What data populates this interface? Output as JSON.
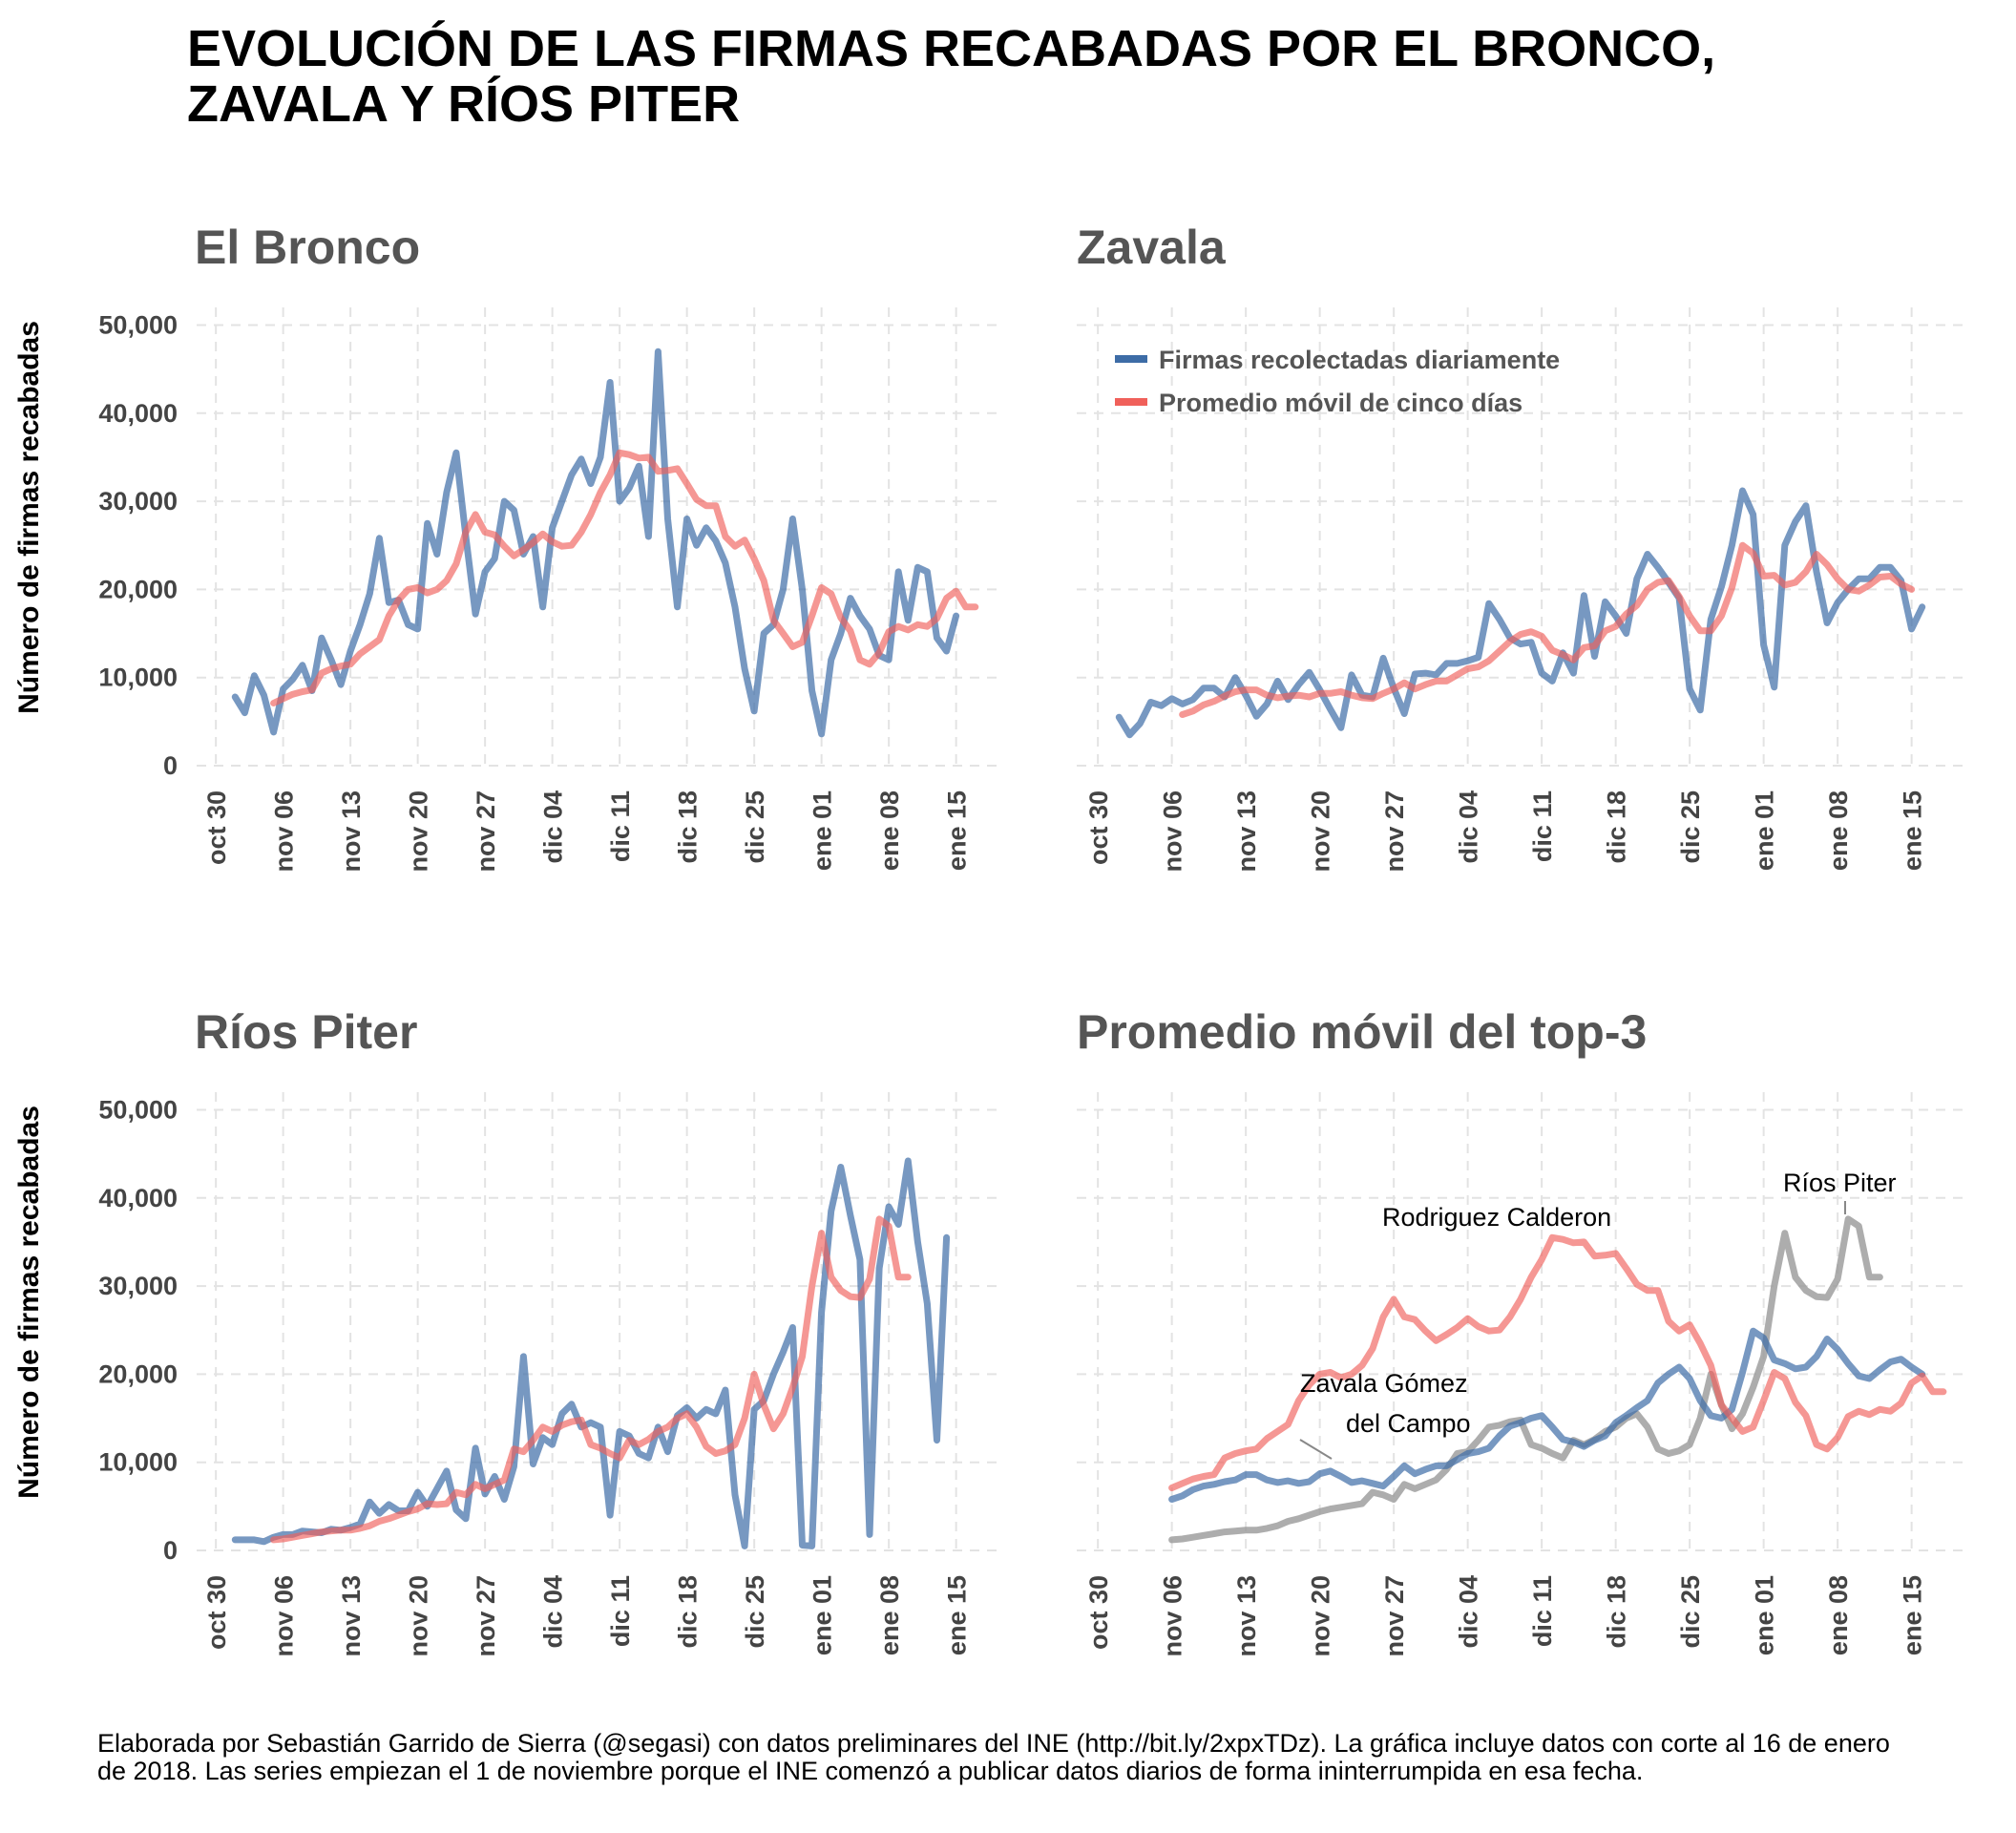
{
  "title": [
    "EVOLUCIÓN DE LAS FIRMAS RECABADAS POR EL BRONCO,",
    "ZAVALA Y RÍOS PITER"
  ],
  "caption": "Elaborada por Sebastián Garrido de Sierra (@segasi) con datos preliminares del INE (http://bit.ly/2xpxTDz). La gráfica incluye datos con corte al 16 de enero de 2018. Las series empiezan el 1 de noviembre porque el INE comenzó a publicar datos diarios de forma ininterrumpida en esa fecha.",
  "colors": {
    "daily": "#3d6ca6",
    "moving_avg": "#f0605a",
    "rios": "#999999",
    "grid": "#e3e3e3",
    "panel_title": "#555555",
    "tick": "#444444"
  },
  "chart_data": [
    {
      "type": "line",
      "title": "El Bronco",
      "ylabel": "Número de firmas recabadas",
      "ylim": [
        0,
        52000
      ],
      "y_ticks": [
        "0",
        "10,000",
        "20,000",
        "30,000",
        "40,000",
        "50,000"
      ],
      "x_tick_labels": [
        "oct 30",
        "nov 06",
        "nov 13",
        "nov 20",
        "nov 27",
        "dic 04",
        "dic 11",
        "dic 18",
        "dic 25",
        "ene 01",
        "ene 08",
        "ene 15"
      ],
      "x_start": "2017-11-01",
      "series": [
        {
          "role": "daily",
          "values": [
            7800,
            6000,
            10200,
            8000,
            3800,
            8700,
            9800,
            11400,
            8500,
            14500,
            12000,
            9200,
            13000,
            16000,
            19500,
            25800,
            18500,
            18800,
            16000,
            15500,
            27500,
            24000,
            31000,
            35500,
            26000,
            17200,
            22000,
            23500,
            30000,
            29000,
            24000,
            26000,
            18000,
            27000,
            30000,
            33000,
            34800,
            32000,
            35000,
            43500,
            30000,
            31500,
            34000,
            26000,
            47000,
            28000,
            18000,
            28000,
            25000,
            27000,
            25500,
            23000,
            18000,
            11000,
            6200,
            15000,
            16000,
            20000,
            28000,
            20000,
            8500,
            3600,
            12000,
            15000,
            19000,
            17000,
            15500,
            12500,
            12000,
            22000,
            16500,
            22500,
            22000,
            14500,
            13000,
            17000
          ]
        },
        {
          "role": "moving_avg",
          "start_index": 4,
          "values": [
            7100,
            7600,
            8100,
            8400,
            8600,
            10500,
            11000,
            11300,
            11500,
            12700,
            13500,
            14300,
            17000,
            18800,
            20000,
            20200,
            19600,
            20000,
            21000,
            22900,
            26500,
            28500,
            26500,
            26200,
            24900,
            23800,
            24500,
            25300,
            26300,
            25400,
            24900,
            25000,
            26500,
            28500,
            31000,
            33000,
            35500,
            35300,
            34900,
            35000,
            33400,
            33500,
            33700,
            32000,
            30200,
            29500,
            29500,
            26000,
            24900,
            25600,
            23500,
            21000,
            16500,
            15000,
            13500,
            14000,
            17000,
            20200,
            19500,
            16800,
            15300,
            12000,
            11500,
            12800,
            15200,
            15800,
            15400,
            16000,
            15800,
            16700,
            19000,
            19800,
            18000,
            18000
          ]
        }
      ]
    },
    {
      "type": "line",
      "title": "Zavala",
      "ylim": [
        0,
        52000
      ],
      "legend": {
        "position": "top-left",
        "entries": [
          "Firmas recolectadas diariamente",
          "Promedio móvil de cinco días"
        ]
      },
      "x_tick_labels": [
        "oct 30",
        "nov 06",
        "nov 13",
        "nov 20",
        "nov 27",
        "dic 04",
        "dic 11",
        "dic 18",
        "dic 25",
        "ene 01",
        "ene 08",
        "ene 15"
      ],
      "x_start": "2017-11-01",
      "series": [
        {
          "role": "daily",
          "values": [
            5500,
            3500,
            4800,
            7200,
            6800,
            7600,
            7000,
            7500,
            8800,
            8800,
            7800,
            10000,
            8000,
            5600,
            7000,
            9600,
            7500,
            9200,
            10600,
            8600,
            6400,
            4300,
            10300,
            8000,
            7800,
            12200,
            8800,
            5900,
            10400,
            10500,
            10300,
            11600,
            11600,
            11900,
            12300,
            18400,
            16600,
            14500,
            13800,
            14000,
            10500,
            9600,
            12800,
            10500,
            19300,
            12400,
            18600,
            17000,
            15000,
            21200,
            24000,
            22500,
            20800,
            19000,
            8700,
            6300,
            16600,
            20300,
            25000,
            31200,
            28500,
            13700,
            8900,
            25000,
            27700,
            29500,
            22000,
            16200,
            18500,
            20000,
            21200,
            21200,
            22500,
            22500,
            21000,
            15500,
            18000
          ]
        },
        {
          "role": "moving_avg",
          "start_index": 6,
          "values": [
            5800,
            6200,
            6900,
            7300,
            7900,
            8400,
            8600,
            8600,
            8000,
            7700,
            7900,
            8000,
            7800,
            8200,
            8200,
            8400,
            8000,
            7700,
            7600,
            8200,
            8700,
            9400,
            8700,
            9200,
            9600,
            9600,
            10300,
            11000,
            11200,
            11900,
            13000,
            14100,
            14900,
            15200,
            14700,
            13100,
            12600,
            12000,
            13400,
            13600,
            15300,
            15800,
            17200,
            18200,
            20000,
            20800,
            21000,
            19200,
            17000,
            15300,
            15300,
            17000,
            20200,
            25000,
            24100,
            21500,
            21600,
            20500,
            20800,
            22000,
            24000,
            22800,
            21200,
            20000,
            19800,
            20500,
            21400,
            21500,
            20600,
            20000
          ]
        }
      ]
    },
    {
      "type": "line",
      "title": "Ríos Piter",
      "ylabel": "Número de firmas recabadas",
      "ylim": [
        0,
        52000
      ],
      "y_ticks": [
        "0",
        "10,000",
        "20,000",
        "30,000",
        "40,000",
        "50,000"
      ],
      "x_tick_labels": [
        "oct 30",
        "nov 06",
        "nov 13",
        "nov 20",
        "nov 27",
        "dic 04",
        "dic 11",
        "dic 18",
        "dic 25",
        "ene 01",
        "ene 08",
        "ene 15"
      ],
      "x_start": "2017-11-01",
      "series": [
        {
          "role": "daily",
          "values": [
            1200,
            1200,
            1200,
            1000,
            1500,
            1800,
            1800,
            2200,
            2100,
            2000,
            2400,
            2300,
            2600,
            3000,
            5500,
            4200,
            5200,
            4500,
            4500,
            6600,
            5000,
            7000,
            9000,
            4600,
            3600,
            11600,
            6400,
            8400,
            5800,
            9500,
            22000,
            9800,
            12800,
            12000,
            15500,
            16600,
            14000,
            14500,
            14000,
            4000,
            13500,
            13000,
            11000,
            10500,
            14000,
            11200,
            15300,
            16200,
            15000,
            16000,
            15500,
            18200,
            6300,
            500,
            16000,
            17000,
            20000,
            22500,
            25300,
            600,
            500,
            27000,
            38500,
            43500,
            38000,
            33000,
            1800,
            32000,
            39000,
            37000,
            44200,
            35000,
            28000,
            12500,
            35500
          ]
        },
        {
          "role": "moving_avg",
          "start_index": 4,
          "values": [
            1200,
            1300,
            1500,
            1700,
            1900,
            2100,
            2200,
            2300,
            2300,
            2500,
            2800,
            3300,
            3600,
            4000,
            4400,
            4700,
            5300,
            5200,
            5300,
            6600,
            6300,
            7500,
            7000,
            7500,
            8000,
            11500,
            11200,
            12500,
            14000,
            13500,
            14200,
            14600,
            14800,
            12000,
            11600,
            11000,
            10500,
            12500,
            12000,
            12600,
            13500,
            14000,
            15000,
            15500,
            14000,
            11800,
            11000,
            11300,
            12000,
            15000,
            20000,
            16500,
            13800,
            15500,
            18500,
            22000,
            30000,
            36000,
            31000,
            29500,
            28800,
            28700,
            30800,
            37600,
            36800,
            31000,
            31000
          ]
        }
      ]
    },
    {
      "type": "line",
      "title": "Promedio móvil del top-3",
      "ylim": [
        0,
        52000
      ],
      "x_tick_labels": [
        "oct 30",
        "nov 06",
        "nov 13",
        "nov 20",
        "nov 27",
        "dic 04",
        "dic 11",
        "dic 18",
        "dic 25",
        "ene 01",
        "ene 08",
        "ene 15"
      ],
      "x_start": "2017-11-06",
      "annotations": [
        {
          "text": "Rodriguez Calderon",
          "series": "Rodriguez Calderon"
        },
        {
          "text": "Zavala Gómez",
          "series": "Zavala Gómez del Campo"
        },
        {
          "text": "del Campo",
          "series": "Zavala Gómez del Campo"
        },
        {
          "text": "Ríos Piter",
          "series": "Ríos Piter"
        }
      ],
      "series": [
        {
          "name": "Rodriguez Calderon",
          "color_role": "moving_avg",
          "values": [
            7100,
            7600,
            8100,
            8400,
            8600,
            10500,
            11000,
            11300,
            11500,
            12700,
            13500,
            14300,
            17000,
            18800,
            20000,
            20200,
            19600,
            20000,
            21000,
            22900,
            26500,
            28500,
            26500,
            26200,
            24900,
            23800,
            24500,
            25300,
            26300,
            25400,
            24900,
            25000,
            26500,
            28500,
            31000,
            33000,
            35500,
            35300,
            34900,
            35000,
            33400,
            33500,
            33700,
            32000,
            30200,
            29500,
            29500,
            26000,
            24900,
            25600,
            23500,
            21000,
            16500,
            15000,
            13500,
            14000,
            17000,
            20200,
            19500,
            16800,
            15300,
            12000,
            11500,
            12800,
            15200,
            15800,
            15400,
            16000,
            15800,
            16700,
            19000,
            19800,
            18000,
            18000
          ]
        },
        {
          "name": "Zavala Gómez del Campo",
          "color_role": "daily",
          "values": [
            5800,
            6200,
            6900,
            7300,
            7500,
            7800,
            8000,
            8600,
            8600,
            8000,
            7700,
            7900,
            7600,
            7800,
            8700,
            9000,
            8400,
            7700,
            7900,
            7600,
            7300,
            8400,
            9600,
            8700,
            9200,
            9600,
            9600,
            10300,
            11000,
            11200,
            11600,
            13000,
            14100,
            14500,
            15000,
            15300,
            14000,
            12600,
            12300,
            11800,
            12500,
            13000,
            14500,
            15300,
            16200,
            17000,
            19000,
            20000,
            20800,
            19500,
            17000,
            15300,
            15000,
            16000,
            20200,
            24900,
            24100,
            21600,
            21200,
            20600,
            20800,
            22000,
            24000,
            22800,
            21200,
            19800,
            19500,
            20500,
            21400,
            21700,
            20800,
            20000
          ]
        },
        {
          "name": "Ríos Piter",
          "color_role": "rios",
          "values": [
            1200,
            1300,
            1500,
            1700,
            1900,
            2100,
            2200,
            2300,
            2300,
            2500,
            2800,
            3300,
            3600,
            4000,
            4400,
            4700,
            4900,
            5100,
            5300,
            6600,
            6300,
            5800,
            7500,
            7000,
            7500,
            8000,
            9200,
            11000,
            11200,
            12500,
            14000,
            14200,
            14600,
            14800,
            12000,
            11600,
            11000,
            10500,
            12500,
            12000,
            12600,
            13500,
            14000,
            15000,
            15500,
            14000,
            11500,
            11000,
            11300,
            12000,
            15000,
            20000,
            16500,
            13800,
            15500,
            18500,
            22000,
            30000,
            36000,
            31000,
            29500,
            28800,
            28700,
            30800,
            37600,
            36800,
            31000,
            31000
          ]
        }
      ]
    }
  ]
}
